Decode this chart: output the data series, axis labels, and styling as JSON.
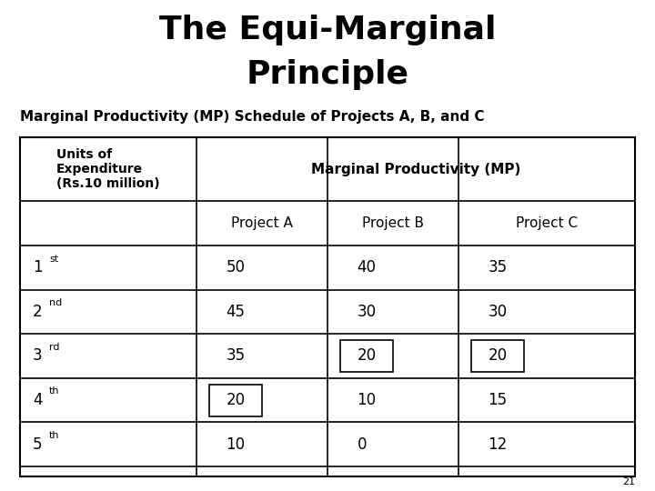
{
  "title_line1": "The Equi-Marginal",
  "title_line2": "Principle",
  "subtitle": "Marginal Productivity (MP) Schedule of Projects A, B, and C",
  "col_header_left": "Units of\nExpenditure\n(Rs.10 million)",
  "col_header_mp": "Marginal Productivity (MP)",
  "col_header_A": "Project A",
  "col_header_B": "Project B",
  "col_header_C": "Project C",
  "rows": [
    {
      "unit": "1st",
      "unit_sup": "",
      "A": "50",
      "B": "40",
      "C": "35",
      "box_A": false,
      "box_B": false,
      "box_C": false
    },
    {
      "unit": "2nd",
      "unit_sup": "",
      "A": "45",
      "B": "30",
      "C": "30",
      "box_A": false,
      "box_B": false,
      "box_C": false
    },
    {
      "unit": "3rd",
      "unit_sup": "",
      "A": "35",
      "B": "20",
      "C": "20",
      "box_A": false,
      "box_B": true,
      "box_C": true
    },
    {
      "unit": "4th",
      "unit_sup": "",
      "A": "20",
      "B": "10",
      "C": "15",
      "box_A": true,
      "box_B": false,
      "box_C": false
    },
    {
      "unit": "5th",
      "unit_sup": "",
      "A": "10",
      "B": "0",
      "C": "12",
      "box_A": false,
      "box_B": false,
      "box_C": false
    }
  ],
  "units_superscripts": [
    "st",
    "nd",
    "rd",
    "th",
    "th"
  ],
  "units_bases": [
    "1",
    "2",
    "3",
    "4",
    "5"
  ],
  "page_number": "21",
  "bg_color": "#ffffff",
  "table_border_color": "#000000",
  "text_color": "#000000"
}
